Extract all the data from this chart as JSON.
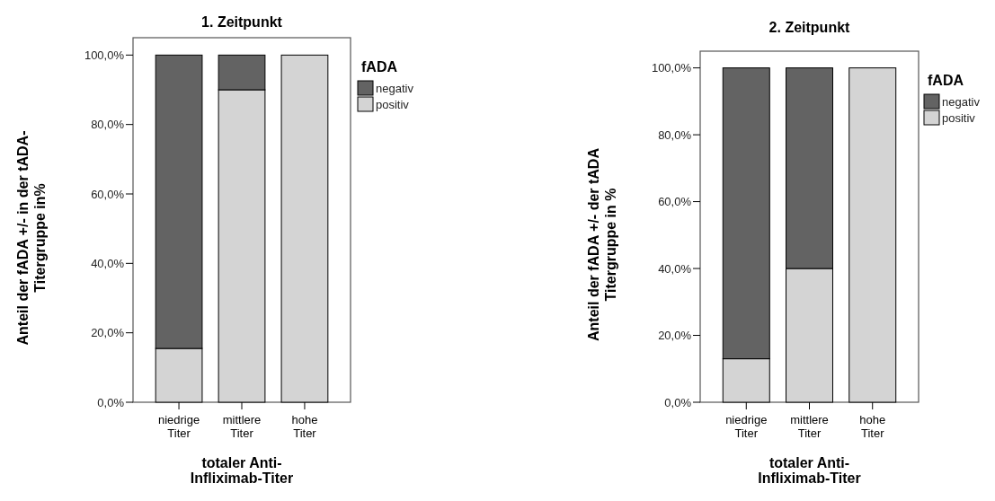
{
  "chart_data": [
    {
      "type": "bar",
      "title": "1. Zeitpunkt",
      "xlabel": "totaler Anti-\nInfliximab-Titer",
      "ylabel": "Anteil der fADA +/- in der tADA-\nTitergruppe  in%",
      "legend_title": "fADA",
      "categories": [
        "niedrige\nTiter",
        "mittlere\nTiter",
        "hohe\nTiter"
      ],
      "stacked": true,
      "legend": "right",
      "grid": false,
      "ylim": [
        0,
        105
      ],
      "yticks": [
        {
          "value": 0,
          "label": "0,0%"
        },
        {
          "value": 20,
          "label": "20,0%"
        },
        {
          "value": 40,
          "label": "40,0%"
        },
        {
          "value": 60,
          "label": "60,0%"
        },
        {
          "value": 80,
          "label": "80,0%"
        },
        {
          "value": 100,
          "label": "100,0%"
        }
      ],
      "series": [
        {
          "name": "positiv",
          "color": "#d4d4d4",
          "values": [
            15.5,
            90,
            100
          ]
        },
        {
          "name": "negativ",
          "color": "#636363",
          "values": [
            84.5,
            10,
            0
          ]
        }
      ]
    },
    {
      "type": "bar",
      "title": "2. Zeitpunkt",
      "xlabel": "totaler Anti-\nInfliximab-Titer",
      "ylabel": "Anteil der fADA +/- der tADA\nTitergruppe in %",
      "legend_title": "fADA",
      "categories": [
        "niedrige\nTiter",
        "mittlere\nTiter",
        "hohe\nTiter"
      ],
      "stacked": true,
      "legend": "right",
      "grid": false,
      "ylim": [
        0,
        105
      ],
      "yticks": [
        {
          "value": 0,
          "label": "0,0%"
        },
        {
          "value": 20,
          "label": "20,0%"
        },
        {
          "value": 40,
          "label": "40,0%"
        },
        {
          "value": 60,
          "label": "60,0%"
        },
        {
          "value": 80,
          "label": "80,0%"
        },
        {
          "value": 100,
          "label": "100,0%"
        }
      ],
      "series": [
        {
          "name": "positiv",
          "color": "#d4d4d4",
          "values": [
            13,
            40,
            100
          ]
        },
        {
          "name": "negativ",
          "color": "#636363",
          "values": [
            87,
            60,
            0
          ]
        }
      ]
    }
  ]
}
